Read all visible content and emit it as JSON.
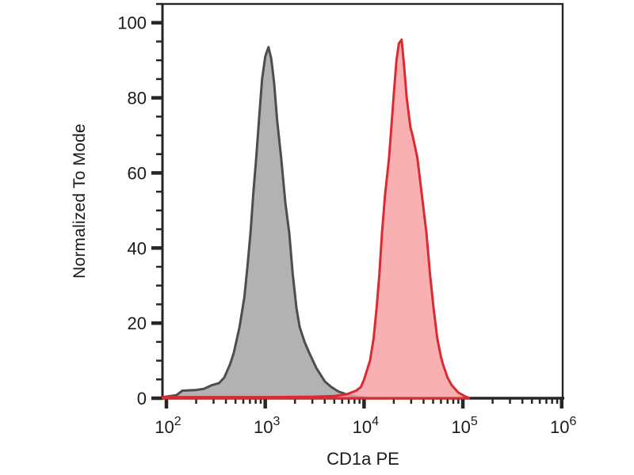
{
  "chart_data": {
    "type": "area",
    "title": "",
    "xlabel": "CD1a PE",
    "ylabel": "Normalized To Mode",
    "x_scale": "log",
    "xlim_log10": [
      1.96,
      6.01
    ],
    "ylim": [
      0,
      105
    ],
    "grid": false,
    "legend": "none",
    "frame": true,
    "colors": {
      "axis": "#262626",
      "text": "#1a1a1a"
    },
    "x_major_ticks": [
      {
        "value": 100,
        "label": "10^2"
      },
      {
        "value": 1000,
        "label": "10^3"
      },
      {
        "value": 10000,
        "label": "10^4"
      },
      {
        "value": 100000,
        "label": "10^5"
      },
      {
        "value": 1000000,
        "label": "10^6"
      }
    ],
    "y_major_ticks": [
      {
        "value": 0,
        "label": "0"
      },
      {
        "value": 20,
        "label": "20"
      },
      {
        "value": 40,
        "label": "40"
      },
      {
        "value": 60,
        "label": "60"
      },
      {
        "value": 80,
        "label": "80"
      },
      {
        "value": 100,
        "label": "100"
      }
    ],
    "y_minor_step": 5,
    "series": [
      {
        "name": "gray-peak",
        "stroke": "#4d4d4d",
        "fill": "#b2b2b2",
        "fill_opacity": 1,
        "stroke_width": 3,
        "peak": {
          "x": 1080,
          "y": 93.5
        },
        "points": [
          [
            92,
            0.3
          ],
          [
            126,
            0.8
          ],
          [
            145,
            2
          ],
          [
            200,
            2.2
          ],
          [
            240,
            2.5
          ],
          [
            290,
            3.5
          ],
          [
            340,
            4
          ],
          [
            385,
            5.5
          ],
          [
            440,
            9
          ],
          [
            480,
            12
          ],
          [
            550,
            19
          ],
          [
            615,
            27
          ],
          [
            660,
            35
          ],
          [
            710,
            44
          ],
          [
            760,
            55
          ],
          [
            810,
            64
          ],
          [
            870,
            75
          ],
          [
            930,
            85
          ],
          [
            1000,
            91
          ],
          [
            1080,
            93.5
          ],
          [
            1150,
            90.5
          ],
          [
            1230,
            84
          ],
          [
            1320,
            74
          ],
          [
            1450,
            64
          ],
          [
            1600,
            52
          ],
          [
            1750,
            44
          ],
          [
            1900,
            33
          ],
          [
            2070,
            24
          ],
          [
            2230,
            19
          ],
          [
            2500,
            15
          ],
          [
            2800,
            12
          ],
          [
            3300,
            8
          ],
          [
            4000,
            4.5
          ],
          [
            4650,
            3
          ],
          [
            5500,
            1.8
          ],
          [
            7000,
            0.8
          ],
          [
            9000,
            0.3
          ],
          [
            11000,
            0.1
          ]
        ]
      },
      {
        "name": "red-peak",
        "stroke": "#da2b33",
        "fill": "#f89fa2",
        "fill_opacity": 0.82,
        "stroke_width": 3,
        "peak": {
          "x": 24000,
          "y": 95.5
        },
        "points": [
          [
            92,
            0.3
          ],
          [
            1000,
            0.3
          ],
          [
            3000,
            0.4
          ],
          [
            5000,
            0.6
          ],
          [
            6600,
            1
          ],
          [
            8300,
            2
          ],
          [
            9300,
            3
          ],
          [
            10000,
            5
          ],
          [
            11500,
            10
          ],
          [
            12500,
            16
          ],
          [
            13400,
            24
          ],
          [
            14300,
            33
          ],
          [
            15200,
            44
          ],
          [
            16300,
            54
          ],
          [
            17900,
            64
          ],
          [
            19000,
            73
          ],
          [
            20000,
            81
          ],
          [
            21300,
            90
          ],
          [
            22500,
            94.5
          ],
          [
            24000,
            95.5
          ],
          [
            25500,
            88
          ],
          [
            27000,
            80
          ],
          [
            29500,
            72
          ],
          [
            31000,
            70
          ],
          [
            34700,
            64
          ],
          [
            38500,
            54
          ],
          [
            42800,
            44
          ],
          [
            46500,
            33
          ],
          [
            50500,
            24
          ],
          [
            55000,
            16
          ],
          [
            60000,
            11
          ],
          [
            63000,
            9
          ],
          [
            70000,
            5.5
          ],
          [
            77000,
            3.5
          ],
          [
            90000,
            1.5
          ],
          [
            105000,
            0.5
          ],
          [
            115000,
            0.1
          ]
        ]
      }
    ]
  }
}
